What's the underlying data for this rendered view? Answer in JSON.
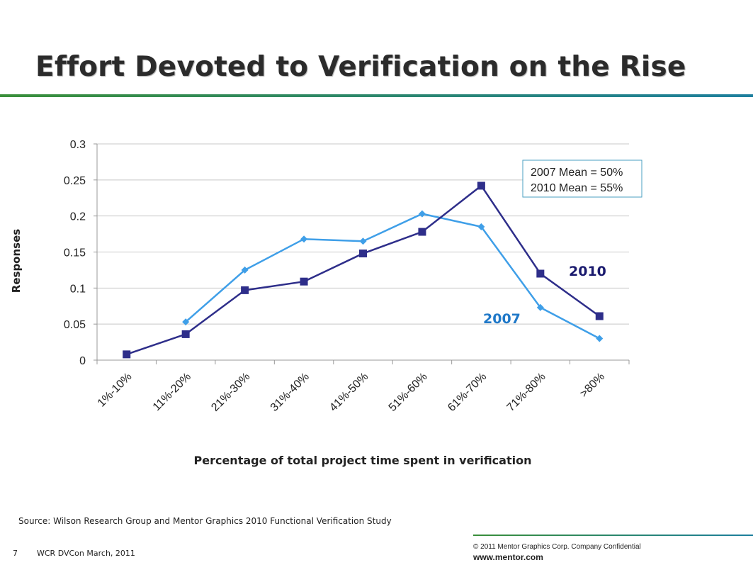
{
  "slide": {
    "title": "Effort Devoted to Verification on the Rise"
  },
  "colors": {
    "title_rule_left": "#3a8f3a",
    "title_rule_right": "#1d7f9e",
    "series_2007": "#3f9fe8",
    "series_2010": "#2e2e8a",
    "label_2007": "#1f78c8",
    "label_2010": "#1a1a6e",
    "gridline": "#c8c8c8",
    "mean_box_border": "#4a9fc0"
  },
  "chart_data": {
    "type": "line",
    "title": "",
    "xlabel": "Percentage of total project time spent in verification",
    "ylabel": "Responses",
    "ylim": [
      0,
      0.3
    ],
    "grid": true,
    "legend": "none",
    "categories": [
      "1%-10%",
      "11%-20%",
      "21%-30%",
      "31%-40%",
      "41%-50%",
      "51%-60%",
      "61%-70%",
      "71%-80%",
      ">80%"
    ],
    "y_ticks": [
      "0",
      "0.05",
      "0.1",
      "0.15",
      "0.2",
      "0.25",
      "0.3"
    ],
    "series": [
      {
        "name": "2007",
        "marker": "diamond",
        "values": [
          null,
          0.053,
          0.125,
          0.168,
          0.165,
          0.203,
          0.185,
          0.073,
          0.03
        ]
      },
      {
        "name": "2010",
        "marker": "square",
        "values": [
          0.008,
          0.036,
          0.097,
          0.109,
          0.148,
          0.178,
          0.242,
          0.12,
          0.061
        ]
      }
    ],
    "annotations": {
      "mean_2007": "2007 Mean = 50%",
      "mean_2010": "2010 Mean = 55%"
    }
  },
  "footer": {
    "source": "Source:  Wilson Research Group and Mentor Graphics 2010 Functional Verification Study",
    "page_number": "7",
    "event": "WCR DVCon March, 2011",
    "copyright": "© 2011 Mentor Graphics Corp. Company Confidential",
    "website": "www.mentor.com"
  }
}
